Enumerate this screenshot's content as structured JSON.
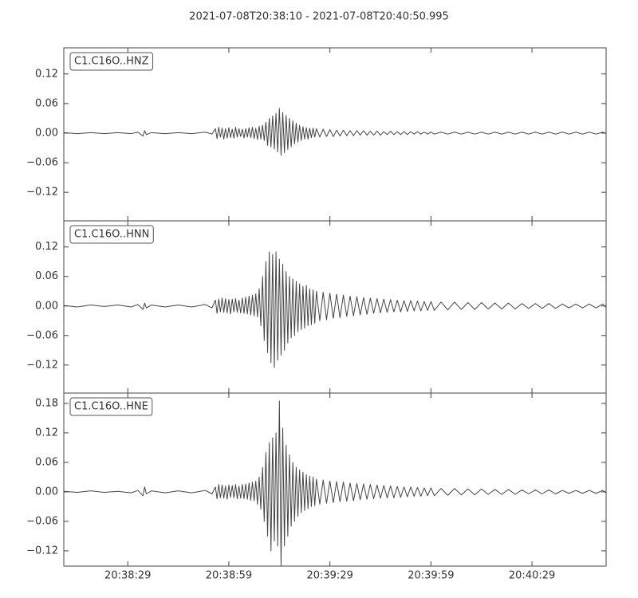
{
  "title": "2021-07-08T20:38:10  -  2021-07-08T20:40:50.995",
  "chart_data": [
    {
      "type": "line",
      "title": "C1.C16O..HNZ",
      "color": "#444444",
      "xlim": [
        0,
        160.995
      ],
      "ylim": [
        -0.178,
        0.173
      ],
      "yticks": [
        {
          "value": -0.12,
          "label": "−0.12"
        },
        {
          "value": -0.06,
          "label": "−0.06"
        },
        {
          "value": 0,
          "label": "0.00"
        },
        0.06,
        0.12
      ],
      "x": [
        0,
        4,
        8,
        12,
        16,
        20,
        22,
        23.5,
        24,
        24.5,
        26,
        30,
        34,
        38,
        42,
        44,
        45,
        45.5,
        46,
        46.5,
        47,
        47.5,
        48,
        48.5,
        49,
        49.5,
        50,
        50.5,
        51,
        51.5,
        52,
        52.5,
        53,
        53.5,
        54,
        54.5,
        55,
        55.5,
        56,
        56.5,
        57,
        57.5,
        58,
        58.5,
        59,
        59.5,
        60,
        60.5,
        61,
        61.5,
        62,
        62.5,
        63,
        63.5,
        64,
        64.5,
        65,
        65.5,
        66,
        66.5,
        67,
        67.5,
        68,
        68.5,
        69,
        69.5,
        70,
        70.5,
        71,
        71.5,
        72,
        72.5,
        73,
        73.5,
        74,
        74.5,
        75,
        76,
        77,
        78,
        79,
        80,
        81,
        82,
        83,
        84,
        85,
        86,
        87,
        88,
        89,
        90,
        91,
        92,
        93,
        94,
        95,
        96,
        97,
        98,
        99,
        100,
        101,
        102,
        103,
        104,
        105,
        106,
        107,
        108,
        109,
        110,
        112,
        114,
        116,
        118,
        120,
        122,
        124,
        126,
        128,
        130,
        132,
        134,
        136,
        138,
        140,
        142,
        144,
        146,
        148,
        150,
        152,
        154,
        156,
        158,
        160,
        160.995
      ],
      "values": [
        0.001,
        -0.001,
        0.001,
        -0.001,
        0.001,
        -0.001,
        0.002,
        -0.006,
        0.005,
        -0.003,
        0.001,
        -0.001,
        0.001,
        -0.001,
        0.002,
        -0.002,
        0.009,
        -0.011,
        0.012,
        -0.008,
        0.01,
        -0.012,
        0.009,
        -0.01,
        0.011,
        -0.009,
        0.008,
        -0.01,
        0.012,
        -0.008,
        0.009,
        -0.007,
        0.008,
        -0.01,
        0.009,
        -0.008,
        0.011,
        -0.009,
        0.012,
        -0.011,
        0.01,
        -0.013,
        0.014,
        -0.012,
        0.016,
        -0.015,
        0.022,
        -0.025,
        0.03,
        -0.028,
        0.035,
        -0.032,
        0.04,
        -0.038,
        0.05,
        -0.045,
        0.042,
        -0.04,
        0.036,
        -0.033,
        0.03,
        -0.028,
        0.025,
        -0.022,
        0.02,
        -0.018,
        0.016,
        -0.015,
        0.013,
        -0.012,
        0.011,
        -0.012,
        0.01,
        -0.009,
        0.01,
        -0.008,
        0.009,
        -0.008,
        0.008,
        -0.007,
        0.007,
        -0.007,
        0.006,
        -0.006,
        0.006,
        -0.005,
        0.005,
        -0.005,
        0.005,
        -0.004,
        0.005,
        -0.004,
        0.004,
        -0.004,
        0.004,
        -0.004,
        0.003,
        -0.003,
        0.004,
        -0.003,
        0.003,
        -0.003,
        0.003,
        -0.003,
        0.003,
        -0.002,
        0.003,
        -0.002,
        0.002,
        -0.002,
        0.002,
        -0.002,
        0.002,
        -0.002,
        0.002,
        -0.002,
        0.002,
        -0.002,
        0.002,
        -0.002,
        0.002,
        -0.002,
        0.002,
        -0.002,
        0.002,
        -0.002,
        0.002,
        -0.002,
        0.002,
        -0.002,
        0.002,
        -0.002,
        0.002,
        -0.002,
        0.002,
        -0.002,
        0.002,
        -0.001
      ]
    },
    {
      "type": "line",
      "title": "C1.C16O..HNN",
      "color": "#444444",
      "xlim": [
        0,
        160.995
      ],
      "ylim": [
        -0.177,
        0.173
      ],
      "yticks": [
        {
          "value": -0.12,
          "label": "−0.12"
        },
        {
          "value": -0.06,
          "label": "−0.06"
        },
        {
          "value": 0,
          "label": "0.00"
        },
        0.06,
        0.12
      ],
      "x": [
        0,
        4,
        8,
        12,
        16,
        20,
        22,
        23.5,
        24,
        24.5,
        26,
        30,
        34,
        38,
        42,
        44,
        45,
        45.5,
        46,
        46.5,
        47,
        47.5,
        48,
        48.5,
        49,
        49.5,
        50,
        50.5,
        51,
        51.5,
        52,
        52.5,
        53,
        53.5,
        54,
        54.5,
        55,
        55.5,
        56,
        56.5,
        57,
        57.5,
        58,
        58.5,
        59,
        59.5,
        60,
        60.5,
        61,
        61.5,
        62,
        62.5,
        63,
        63.5,
        64,
        64.5,
        65,
        65.5,
        66,
        66.5,
        67,
        67.5,
        68,
        68.5,
        69,
        69.5,
        70,
        70.5,
        71,
        71.5,
        72,
        72.5,
        73,
        73.5,
        74,
        74.5,
        75,
        76,
        77,
        78,
        79,
        80,
        81,
        82,
        83,
        84,
        85,
        86,
        87,
        88,
        89,
        90,
        91,
        92,
        93,
        94,
        95,
        96,
        97,
        98,
        99,
        100,
        101,
        102,
        103,
        104,
        105,
        106,
        107,
        108,
        109,
        110,
        112,
        114,
        116,
        118,
        120,
        122,
        124,
        126,
        128,
        130,
        132,
        134,
        136,
        138,
        140,
        142,
        144,
        146,
        148,
        150,
        152,
        154,
        156,
        158,
        160,
        160.995
      ],
      "values": [
        0.001,
        -0.002,
        0.002,
        -0.001,
        0.002,
        -0.002,
        0.003,
        -0.007,
        0.006,
        -0.004,
        0.002,
        -0.002,
        0.002,
        -0.002,
        0.003,
        -0.004,
        0.012,
        -0.015,
        0.014,
        -0.012,
        0.016,
        -0.013,
        0.015,
        -0.014,
        0.013,
        -0.016,
        0.014,
        -0.012,
        0.015,
        -0.013,
        0.012,
        -0.014,
        0.016,
        -0.015,
        0.018,
        -0.016,
        0.02,
        -0.018,
        0.022,
        -0.02,
        0.025,
        -0.022,
        0.035,
        -0.04,
        0.06,
        -0.07,
        0.09,
        -0.095,
        0.11,
        -0.115,
        0.105,
        -0.125,
        0.11,
        -0.11,
        0.095,
        -0.1,
        0.085,
        -0.09,
        0.07,
        -0.075,
        0.06,
        -0.065,
        0.055,
        -0.06,
        0.05,
        -0.052,
        0.045,
        -0.048,
        0.04,
        -0.045,
        0.042,
        -0.04,
        0.035,
        -0.038,
        0.033,
        -0.035,
        0.03,
        -0.03,
        0.028,
        -0.028,
        0.026,
        -0.025,
        0.024,
        -0.024,
        0.022,
        -0.021,
        0.02,
        -0.02,
        0.019,
        -0.018,
        0.017,
        -0.017,
        0.016,
        -0.015,
        0.015,
        -0.014,
        0.014,
        -0.013,
        0.013,
        -0.012,
        0.012,
        -0.012,
        0.011,
        -0.011,
        0.011,
        -0.01,
        0.01,
        -0.01,
        0.009,
        -0.009,
        0.009,
        -0.009,
        0.008,
        -0.008,
        0.008,
        -0.007,
        0.007,
        -0.007,
        0.007,
        -0.006,
        0.006,
        -0.006,
        0.006,
        -0.006,
        0.005,
        -0.005,
        0.005,
        -0.005,
        0.005,
        -0.005,
        0.004,
        -0.004,
        0.004,
        -0.004,
        0.004,
        -0.004,
        0.004,
        -0.003
      ]
    },
    {
      "type": "line",
      "title": "C1.C16O..HNE",
      "color": "#444444",
      "xlim": [
        0,
        160.995
      ],
      "ylim": [
        -0.151,
        0.201
      ],
      "xticks": [
        {
          "value": 19,
          "label": "20:38:29"
        },
        {
          "value": 49,
          "label": "20:38:59"
        },
        {
          "value": 79,
          "label": "20:39:29"
        },
        {
          "value": 109,
          "label": "20:39:59"
        },
        {
          "value": 139,
          "label": "20:40:29"
        }
      ],
      "yticks": [
        {
          "value": -0.12,
          "label": "−0.12"
        },
        {
          "value": -0.06,
          "label": "−0.06"
        },
        {
          "value": 0,
          "label": "0.00"
        },
        0.06,
        0.12,
        0.18
      ],
      "x": [
        0,
        4,
        8,
        12,
        16,
        20,
        22,
        23.5,
        24,
        24.5,
        26,
        30,
        34,
        38,
        42,
        44,
        45,
        45.5,
        46,
        46.5,
        47,
        47.5,
        48,
        48.5,
        49,
        49.5,
        50,
        50.5,
        51,
        51.5,
        52,
        52.5,
        53,
        53.5,
        54,
        54.5,
        55,
        55.5,
        56,
        56.5,
        57,
        57.5,
        58,
        58.5,
        59,
        59.5,
        60,
        60.5,
        61,
        61.5,
        62,
        62.5,
        63,
        63.5,
        64,
        64.5,
        65,
        65.5,
        66,
        66.5,
        67,
        67.5,
        68,
        68.5,
        69,
        69.5,
        70,
        70.5,
        71,
        71.5,
        72,
        72.5,
        73,
        73.5,
        74,
        74.5,
        75,
        76,
        77,
        78,
        79,
        80,
        81,
        82,
        83,
        84,
        85,
        86,
        87,
        88,
        89,
        90,
        91,
        92,
        93,
        94,
        95,
        96,
        97,
        98,
        99,
        100,
        101,
        102,
        103,
        104,
        105,
        106,
        107,
        108,
        109,
        110,
        112,
        114,
        116,
        118,
        120,
        122,
        124,
        126,
        128,
        130,
        132,
        134,
        136,
        138,
        140,
        142,
        144,
        146,
        148,
        150,
        152,
        154,
        156,
        158,
        160,
        160.995
      ],
      "values": [
        0.001,
        -0.001,
        0.002,
        -0.001,
        0.001,
        -0.002,
        0.003,
        -0.008,
        0.01,
        -0.004,
        0.002,
        -0.002,
        0.002,
        -0.002,
        0.003,
        -0.004,
        0.01,
        -0.014,
        0.015,
        -0.012,
        0.014,
        -0.013,
        0.012,
        -0.015,
        0.014,
        -0.011,
        0.013,
        -0.012,
        0.015,
        -0.014,
        0.012,
        -0.013,
        0.015,
        -0.014,
        0.016,
        -0.015,
        0.018,
        -0.017,
        0.02,
        -0.018,
        0.022,
        -0.025,
        0.03,
        -0.035,
        0.05,
        -0.06,
        0.08,
        -0.09,
        0.1,
        -0.12,
        0.11,
        -0.1,
        0.12,
        -0.11,
        0.185,
        -0.15,
        0.13,
        -0.11,
        0.095,
        -0.09,
        0.075,
        -0.07,
        0.06,
        -0.06,
        0.05,
        -0.05,
        0.045,
        -0.042,
        0.04,
        -0.038,
        0.035,
        -0.034,
        0.032,
        -0.03,
        0.03,
        -0.028,
        0.026,
        -0.025,
        0.024,
        -0.023,
        0.022,
        -0.022,
        0.021,
        -0.02,
        0.02,
        -0.019,
        0.018,
        -0.018,
        0.017,
        -0.016,
        0.016,
        -0.015,
        0.015,
        -0.014,
        0.014,
        -0.013,
        0.013,
        -0.012,
        0.012,
        -0.012,
        0.011,
        -0.011,
        0.01,
        -0.01,
        0.01,
        -0.009,
        0.009,
        -0.009,
        0.008,
        -0.008,
        0.008,
        -0.008,
        0.007,
        -0.007,
        0.007,
        -0.006,
        0.006,
        -0.006,
        0.006,
        -0.005,
        0.005,
        -0.005,
        0.005,
        -0.005,
        0.004,
        -0.004,
        0.004,
        -0.004,
        0.004,
        -0.004,
        0.003,
        -0.003,
        0.003,
        -0.003,
        0.003,
        -0.003,
        0.003,
        -0.002
      ]
    }
  ]
}
